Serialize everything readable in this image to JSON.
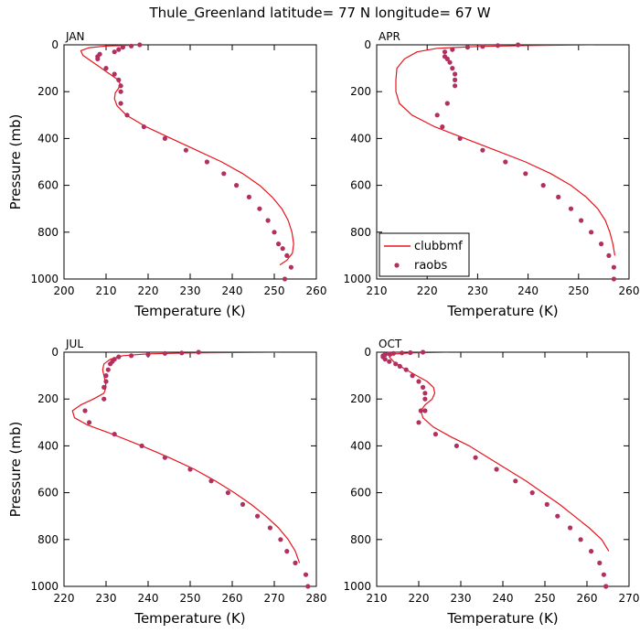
{
  "title": "Thule_Greenland  latitude= 77 N longitude= 67 W",
  "colors": {
    "model": "#e8141b",
    "obs": "#b23060"
  },
  "legend": {
    "items": [
      "clubbmf",
      "raobs"
    ],
    "placement": "bottom-left",
    "panel": 1
  },
  "chart_data": [
    {
      "type": "line",
      "label": "JAN",
      "xlabel": "Temperature (K)",
      "ylabel": "Pressure (mb)",
      "xlim": [
        200,
        260
      ],
      "xticks": [
        200,
        210,
        220,
        230,
        240,
        250,
        260
      ],
      "ylim": [
        0,
        1000
      ],
      "yticks": [
        0,
        200,
        400,
        600,
        800,
        1000
      ],
      "y_inverted": true,
      "series": [
        {
          "name": "clubbmf",
          "kind": "line",
          "x": [
            216,
            210,
            206,
            204,
            204.5,
            206.5,
            208.5,
            210.5,
            212.5,
            213.3,
            213.0,
            212.2,
            212.0,
            212.6,
            214.8,
            219.5,
            225.5,
            231.5,
            237.5,
            242.5,
            246.5,
            249.5,
            251.8,
            253.3,
            254.2,
            254.6,
            254.3,
            253.0,
            251.3
          ],
          "y": [
            2,
            5,
            12,
            25,
            45,
            70,
            95,
            120,
            145,
            165,
            185,
            205,
            230,
            260,
            300,
            350,
            400,
            450,
            500,
            550,
            600,
            650,
            700,
            750,
            800,
            850,
            890,
            920,
            940
          ]
        },
        {
          "name": "raobs",
          "kind": "scatter",
          "x": [
            218,
            216,
            214,
            213,
            212,
            208.5,
            208,
            208,
            210,
            212,
            213,
            213.5,
            213.5,
            213.5,
            215,
            219,
            224,
            229,
            234,
            238,
            241,
            244,
            246.5,
            248.5,
            250,
            251,
            252,
            253,
            254,
            252.5
          ],
          "y": [
            0,
            5,
            10,
            20,
            30,
            40,
            50,
            60,
            100,
            125,
            150,
            175,
            200,
            250,
            300,
            350,
            400,
            450,
            500,
            550,
            600,
            650,
            700,
            750,
            800,
            850,
            870,
            900,
            950,
            1000
          ]
        }
      ]
    },
    {
      "type": "line",
      "label": "APR",
      "xlabel": "Temperature (K)",
      "ylabel": "",
      "xlim": [
        210,
        260
      ],
      "xticks": [
        210,
        220,
        230,
        240,
        250,
        260
      ],
      "ylim": [
        0,
        1000
      ],
      "yticks": [
        0,
        200,
        400,
        600,
        800,
        1000
      ],
      "y_inverted": true,
      "series": [
        {
          "name": "clubbmf",
          "kind": "line",
          "x": [
            253,
            240,
            230,
            222,
            218,
            215.5,
            214,
            213.8,
            213.8,
            214.5,
            217,
            221.5,
            227.5,
            233.5,
            239.5,
            244.5,
            248.5,
            251.5,
            253.8,
            255.3,
            256.2,
            256.8,
            257.2
          ],
          "y": [
            0,
            3,
            7,
            15,
            30,
            60,
            100,
            150,
            200,
            250,
            300,
            350,
            400,
            450,
            500,
            550,
            600,
            650,
            700,
            750,
            800,
            850,
            900
          ]
        },
        {
          "name": "raobs",
          "kind": "scatter",
          "x": [
            238,
            234,
            231,
            228,
            225,
            223.5,
            223.5,
            224,
            224.5,
            225,
            225.5,
            225.5,
            225.5,
            224,
            222,
            223,
            226.5,
            231,
            235.5,
            239.5,
            243,
            246,
            248.5,
            250.5,
            252.5,
            254.5,
            256,
            257,
            257
          ],
          "y": [
            0,
            3,
            7,
            10,
            20,
            30,
            50,
            60,
            75,
            100,
            125,
            150,
            175,
            250,
            300,
            350,
            400,
            450,
            500,
            550,
            600,
            650,
            700,
            750,
            800,
            850,
            900,
            950,
            1000
          ]
        }
      ]
    },
    {
      "type": "line",
      "label": "JUL",
      "xlabel": "Temperature (K)",
      "ylabel": "Pressure (mb)",
      "xlim": [
        220,
        280
      ],
      "xticks": [
        220,
        230,
        240,
        250,
        260,
        270,
        280
      ],
      "ylim": [
        0,
        1000
      ],
      "yticks": [
        0,
        200,
        400,
        600,
        800,
        1000
      ],
      "y_inverted": true,
      "series": [
        {
          "name": "clubbmf",
          "kind": "line",
          "x": [
            271,
            250,
            240,
            234,
            231,
            229.5,
            229.2,
            229.5,
            229.8,
            230,
            229.5,
            227,
            224,
            222,
            222.5,
            225.5,
            231.5,
            238.5,
            245,
            251,
            256,
            260.5,
            264.5,
            268,
            271,
            273.3,
            275,
            276
          ],
          "y": [
            0,
            3,
            7,
            15,
            30,
            50,
            75,
            100,
            125,
            150,
            175,
            200,
            225,
            250,
            280,
            310,
            350,
            400,
            450,
            500,
            550,
            600,
            650,
            700,
            750,
            800,
            850,
            900
          ]
        },
        {
          "name": "raobs",
          "kind": "scatter",
          "x": [
            252,
            248,
            244,
            240,
            236,
            233,
            232,
            231.5,
            231,
            230.5,
            230,
            230,
            229.5,
            229.5,
            225,
            226,
            232,
            238.5,
            244,
            250,
            255,
            259,
            262.5,
            266,
            269,
            271.5,
            273,
            275,
            277.5,
            278
          ],
          "y": [
            0,
            3,
            5,
            10,
            15,
            20,
            30,
            40,
            50,
            75,
            100,
            125,
            150,
            200,
            250,
            300,
            350,
            400,
            450,
            500,
            550,
            600,
            650,
            700,
            750,
            800,
            850,
            900,
            950,
            1000
          ]
        }
      ]
    },
    {
      "type": "line",
      "label": "OCT",
      "xlabel": "Temperature (K)",
      "ylabel": "",
      "xlim": [
        210,
        270
      ],
      "xticks": [
        210,
        220,
        230,
        240,
        250,
        260,
        270
      ],
      "ylim": [
        0,
        1000
      ],
      "yticks": [
        0,
        200,
        400,
        600,
        800,
        1000
      ],
      "y_inverted": true,
      "series": [
        {
          "name": "clubbmf",
          "kind": "line",
          "x": [
            227,
            218,
            214,
            213,
            214,
            216.5,
            219.5,
            222,
            223.5,
            223.8,
            223.2,
            221.5,
            220.5,
            221,
            223.5,
            227.5,
            232,
            236.5,
            241,
            245.5,
            249.5,
            253.5,
            257,
            260.5,
            263.5,
            265.2
          ],
          "y": [
            0,
            3,
            8,
            20,
            40,
            70,
            100,
            125,
            150,
            175,
            200,
            225,
            250,
            280,
            320,
            360,
            400,
            450,
            500,
            550,
            600,
            650,
            700,
            750,
            800,
            850
          ]
        },
        {
          "name": "raobs",
          "kind": "scatter",
          "x": [
            221,
            218,
            216,
            214,
            213,
            212,
            211.5,
            211.5,
            212,
            213,
            214.5,
            215.5,
            217,
            218.5,
            220,
            221,
            221.5,
            221.5,
            221.5,
            220.5,
            220,
            224,
            229,
            233.5,
            238.5,
            243,
            247,
            250.5,
            253,
            256,
            258.5,
            261,
            263,
            264,
            264.5,
            264.5
          ],
          "y": [
            0,
            2,
            3,
            5,
            7,
            10,
            15,
            20,
            30,
            40,
            50,
            60,
            75,
            100,
            125,
            150,
            175,
            200,
            250,
            250,
            300,
            350,
            400,
            450,
            500,
            550,
            600,
            650,
            700,
            750,
            800,
            850,
            900,
            950,
            1000,
            1000
          ]
        }
      ]
    }
  ]
}
